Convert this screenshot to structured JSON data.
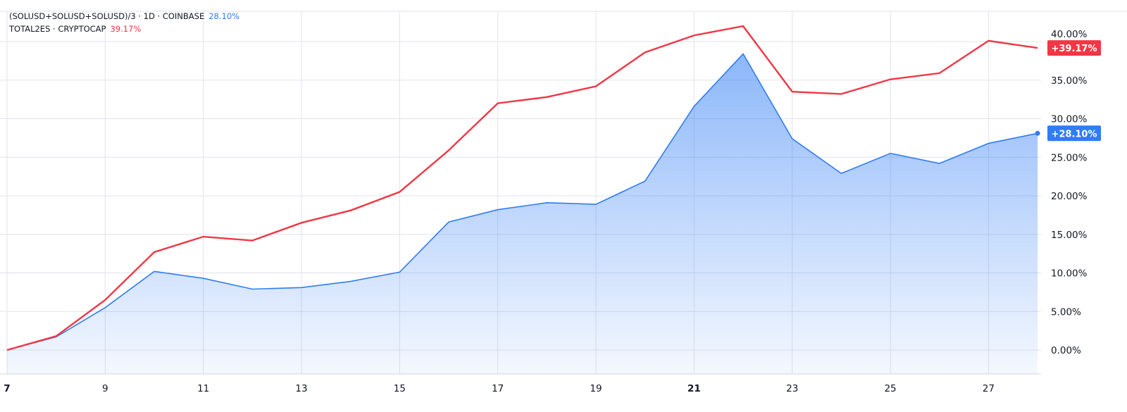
{
  "legend": {
    "series1_title": "(SOLUSD+SOLUSD+SOLUSD)/3 · 1D · COINBASE",
    "series1_value": "28.10%",
    "series2_title": "TOTAL2ES · CRYPTOCAP",
    "series2_value": "39.17%"
  },
  "chart_data": {
    "type": "line",
    "x": [
      7,
      8,
      9,
      10,
      11,
      12,
      13,
      14,
      15,
      16,
      17,
      18,
      19,
      20,
      21,
      22,
      23,
      24,
      25,
      26,
      27,
      28
    ],
    "x_tick_labels": [
      "7",
      "9",
      "11",
      "13",
      "15",
      "17",
      "19",
      "21",
      "23",
      "25",
      "27"
    ],
    "y_tick_labels": [
      "0.00%",
      "5.00%",
      "10.00%",
      "15.00%",
      "20.00%",
      "25.00%",
      "30.00%",
      "35.00%",
      "40.00%"
    ],
    "ylim": [
      -3,
      44
    ],
    "y_axis_position": "right",
    "grid": true,
    "series": [
      {
        "color": "#2f7cf6",
        "style": "area",
        "values": [
          0,
          1.7,
          5.5,
          10.2,
          9.3,
          7.9,
          8.1,
          8.9,
          10.1,
          16.6,
          18.2,
          19.1,
          18.9,
          21.9,
          31.6,
          38.4,
          27.4,
          22.9,
          25.5,
          24.2,
          26.8,
          28.1
        ],
        "last_label": "+28.10%"
      },
      {
        "color": "#f23645",
        "style": "line",
        "values": [
          0,
          1.8,
          6.5,
          12.7,
          14.7,
          14.2,
          16.5,
          18.1,
          20.5,
          25.9,
          32.0,
          32.8,
          34.2,
          38.6,
          40.8,
          42.0,
          33.5,
          33.2,
          35.1,
          35.9,
          40.1,
          39.17
        ],
        "last_label": "+39.17%"
      }
    ]
  }
}
